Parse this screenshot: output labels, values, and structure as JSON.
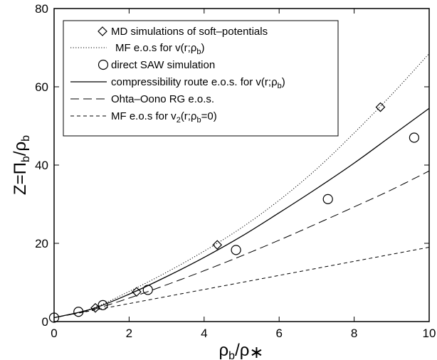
{
  "chart_data": {
    "type": "line",
    "xlabel": "ρb/ρ*",
    "ylabel": "Z=Πb/ρb",
    "xlim": [
      0,
      10
    ],
    "ylim": [
      0,
      80
    ],
    "xticks": [
      0,
      2,
      4,
      6,
      8,
      10
    ],
    "yticks": [
      0,
      20,
      40,
      60,
      80
    ],
    "xtick_labels": [
      "0",
      "2",
      "4",
      "6",
      "8",
      "10"
    ],
    "ytick_labels": [
      "0",
      "20",
      "40",
      "60",
      "80"
    ],
    "grid": false,
    "legend_position": "top-left",
    "legend": [
      {
        "symbol": "diamond",
        "text": "MD simulations of soft–potentials"
      },
      {
        "symbol": "dotted",
        "text": "MF e.o.s for v(r;ρb)"
      },
      {
        "symbol": "circle",
        "text": "direct SAW simulation"
      },
      {
        "symbol": "solid",
        "text": "compressibility route e.o.s. for v(r;ρb)"
      },
      {
        "symbol": "long-dash",
        "text": "Ohta–Oono RG e.o.s."
      },
      {
        "symbol": "short-dash",
        "text": "MF e.o.s for v2(r;ρb=0)"
      }
    ],
    "series": [
      {
        "style": "diamond",
        "points": [
          [
            1.1,
            3.5
          ],
          [
            2.2,
            7.6
          ],
          [
            4.35,
            19.6
          ],
          [
            8.7,
            54.8
          ]
        ]
      },
      {
        "style": "dotted",
        "points": [
          [
            0,
            1
          ],
          [
            1,
            3.3
          ],
          [
            2,
            7.7
          ],
          [
            3,
            12.6
          ],
          [
            4,
            18
          ],
          [
            5,
            24
          ],
          [
            6,
            31
          ],
          [
            7,
            39
          ],
          [
            8,
            48.2
          ],
          [
            9,
            58
          ],
          [
            10,
            68.5
          ]
        ]
      },
      {
        "style": "circle",
        "points": [
          [
            0,
            1
          ],
          [
            0.65,
            2.5
          ],
          [
            1.3,
            4.2
          ],
          [
            2.5,
            8.1
          ],
          [
            4.85,
            18.3
          ],
          [
            7.3,
            31.3
          ],
          [
            9.6,
            47
          ]
        ]
      },
      {
        "style": "solid",
        "points": [
          [
            0,
            1
          ],
          [
            1,
            3.2
          ],
          [
            2,
            7
          ],
          [
            3,
            11.5
          ],
          [
            4,
            16.4
          ],
          [
            5,
            21.8
          ],
          [
            6,
            27.8
          ],
          [
            7,
            34
          ],
          [
            8,
            40.5
          ],
          [
            9,
            47.5
          ],
          [
            10,
            54.5
          ]
        ]
      },
      {
        "style": "long-dash",
        "points": [
          [
            0,
            1
          ],
          [
            1,
            3
          ],
          [
            2,
            6
          ],
          [
            3,
            9.4
          ],
          [
            4,
            13
          ],
          [
            5,
            16.8
          ],
          [
            6,
            20.8
          ],
          [
            7,
            25
          ],
          [
            8,
            29.3
          ],
          [
            9,
            33.7
          ],
          [
            10,
            38.5
          ]
        ]
      },
      {
        "style": "short-dash",
        "points": [
          [
            0,
            1
          ],
          [
            2,
            4.6
          ],
          [
            4,
            8.2
          ],
          [
            6,
            11.8
          ],
          [
            8,
            15.4
          ],
          [
            10,
            19
          ]
        ]
      }
    ]
  }
}
